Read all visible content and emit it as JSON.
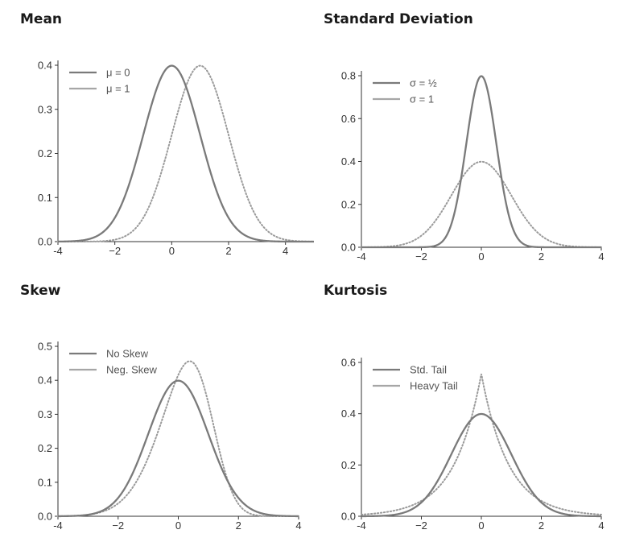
{
  "colors": {
    "solid": "#7a7a7a",
    "dotted": "#9a9a9a",
    "axis": "#333333",
    "legend_solid": "#7a7a7a",
    "legend_dotted": "#a6a6a6"
  },
  "chart_data": [
    {
      "type": "line",
      "title": "Mean",
      "xlim": [
        -4,
        5
      ],
      "ylim": [
        0,
        0.4
      ],
      "xticks": [
        "-4",
        "−2",
        "0",
        "2",
        "4"
      ],
      "xtick_values": [
        -4,
        -2,
        0,
        2,
        4
      ],
      "yticks": [
        "0.0",
        "0.1",
        "0.2",
        "0.3",
        "0.4"
      ],
      "ytick_values": [
        0,
        0.1,
        0.2,
        0.3,
        0.4
      ],
      "legend_position": "top-left",
      "series": [
        {
          "name": "μ = 0",
          "style": "solid",
          "dist": "normal",
          "mu": 0,
          "sigma": 1
        },
        {
          "name": "μ = 1",
          "style": "dotted",
          "dist": "normal",
          "mu": 1,
          "sigma": 1
        }
      ]
    },
    {
      "type": "line",
      "title": "Standard Deviation",
      "xlim": [
        -4,
        4
      ],
      "ylim": [
        0,
        0.8
      ],
      "xticks": [
        "-4",
        "−2",
        "0",
        "2",
        "4"
      ],
      "xtick_values": [
        -4,
        -2,
        0,
        2,
        4
      ],
      "yticks": [
        "0.0",
        "0.2",
        "0.4",
        "0.6",
        "0.8"
      ],
      "ytick_values": [
        0,
        0.2,
        0.4,
        0.6,
        0.8
      ],
      "legend_position": "top-left",
      "series": [
        {
          "name": "σ = ½",
          "style": "solid",
          "dist": "normal",
          "mu": 0,
          "sigma": 0.5
        },
        {
          "name": "σ = 1",
          "style": "dotted",
          "dist": "normal",
          "mu": 0,
          "sigma": 1
        }
      ]
    },
    {
      "type": "line",
      "title": "Skew",
      "xlim": [
        -4,
        4
      ],
      "ylim": [
        0,
        0.5
      ],
      "xticks": [
        "-4",
        "−2",
        "0",
        "2",
        "4"
      ],
      "xtick_values": [
        -4,
        -2,
        0,
        2,
        4
      ],
      "yticks": [
        "0.0",
        "0.1",
        "0.2",
        "0.3",
        "0.4",
        "0.5"
      ],
      "ytick_values": [
        0,
        0.1,
        0.2,
        0.3,
        0.4,
        0.5
      ],
      "legend_position": "top-left",
      "series": [
        {
          "name": "No Skew",
          "style": "solid",
          "dist": "normal",
          "mu": 0,
          "sigma": 1
        },
        {
          "name": "Neg. Skew",
          "style": "dotted",
          "dist": "skewnormal",
          "loc": 1.07,
          "scale": 1.3,
          "alpha": -2
        }
      ]
    },
    {
      "type": "line",
      "title": "Kurtosis",
      "xlim": [
        -4,
        4
      ],
      "ylim": [
        0,
        0.6
      ],
      "xticks": [
        "-4",
        "−2",
        "0",
        "2",
        "4"
      ],
      "xtick_values": [
        -4,
        -2,
        0,
        2,
        4
      ],
      "yticks": [
        "0.0",
        "0.2",
        "0.4",
        "0.6"
      ],
      "ytick_values": [
        0,
        0.2,
        0.4,
        0.6
      ],
      "legend_position": "top-left",
      "series": [
        {
          "name": "Std. Tail",
          "style": "solid",
          "dist": "normal",
          "mu": 0,
          "sigma": 1
        },
        {
          "name": "Heavy Tail",
          "style": "dotted",
          "dist": "laplace",
          "mu": 0,
          "b": 0.9
        }
      ]
    }
  ]
}
